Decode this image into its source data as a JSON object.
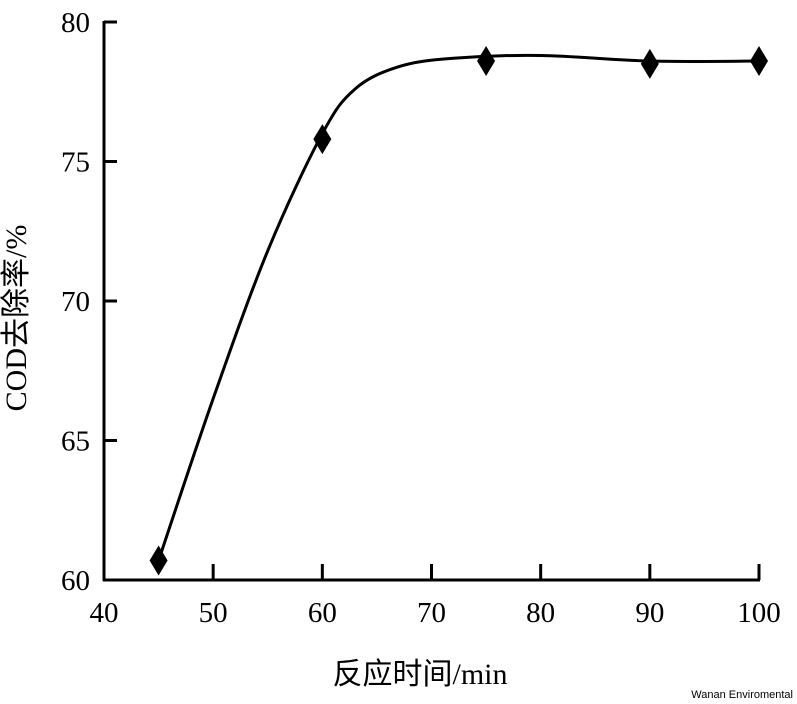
{
  "chart_data": {
    "type": "line",
    "title": "",
    "xlabel": "反应时间/min",
    "ylabel": "COD去除率/%",
    "xlim": [
      40,
      100
    ],
    "ylim": [
      60,
      80
    ],
    "x_ticks": [
      40,
      50,
      60,
      70,
      80,
      90,
      100
    ],
    "y_ticks": [
      60,
      65,
      70,
      75,
      80
    ],
    "grid": false,
    "legend": null,
    "marker": "diamond",
    "series": [
      {
        "name": "COD去除率",
        "x": [
          45,
          60,
          75,
          90,
          100
        ],
        "values": [
          60.7,
          75.8,
          78.6,
          78.5,
          78.6
        ]
      }
    ],
    "smooth_curve": [
      [
        45,
        60.7
      ],
      [
        50,
        66.5
      ],
      [
        55,
        71.8
      ],
      [
        60,
        76.0
      ],
      [
        63,
        77.6
      ],
      [
        67,
        78.4
      ],
      [
        72,
        78.7
      ],
      [
        80,
        78.8
      ],
      [
        90,
        78.6
      ],
      [
        100,
        78.6
      ]
    ],
    "colors": {
      "line": "#000000",
      "marker": "#000000",
      "axis": "#000000"
    }
  },
  "watermark": "Wanan Enviromental"
}
